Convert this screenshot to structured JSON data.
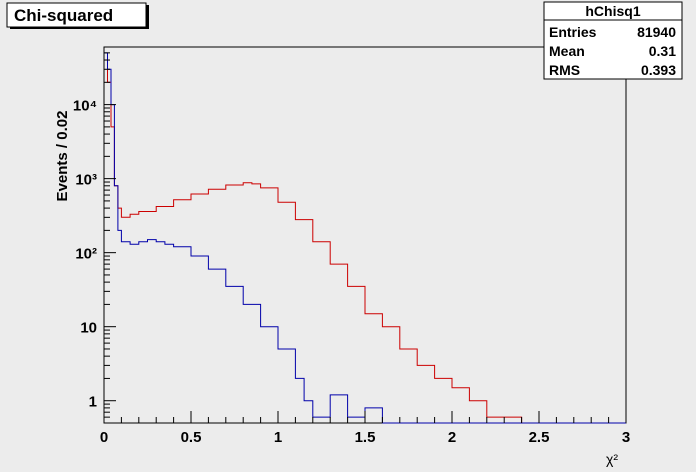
{
  "title": "Chi-squared",
  "stats": {
    "name": "hChisq1",
    "rows": [
      {
        "label": "Entries",
        "value": "81940"
      },
      {
        "label": "Mean",
        "value": "0.31"
      },
      {
        "label": "RMS",
        "value": "0.393"
      }
    ]
  },
  "colors": {
    "background": "#ececec",
    "frame": "#000000",
    "red_series": "#cc0000",
    "blue_series": "#0000aa"
  },
  "chart_data": {
    "type": "line",
    "title": "Chi-squared",
    "xlabel": "χ²",
    "ylabel": "Events / 0.02",
    "xlim": [
      0,
      3
    ],
    "ylim": [
      0.5,
      60000
    ],
    "yscale": "log",
    "grid": false,
    "legend": "none",
    "xticks": [
      0,
      0.5,
      1,
      1.5,
      2,
      2.5,
      3
    ],
    "xtick_labels": [
      "0",
      "0.5",
      "1",
      "1.5",
      "2",
      "2.5",
      "3"
    ],
    "yticks": [
      1,
      10,
      100,
      1000,
      10000
    ],
    "ytick_labels": [
      "1",
      "10",
      "10²",
      "10³",
      "10⁴"
    ],
    "step_histogram": true,
    "bin_width": 0.01,
    "series": [
      {
        "color": "#cc0000",
        "x": [
          0.0,
          0.02,
          0.04,
          0.06,
          0.08,
          0.1,
          0.15,
          0.2,
          0.3,
          0.4,
          0.5,
          0.6,
          0.7,
          0.8,
          0.85,
          0.9,
          1.0,
          1.1,
          1.2,
          1.3,
          1.4,
          1.5,
          1.6,
          1.7,
          1.8,
          1.9,
          2.0,
          2.1,
          2.2,
          2.3,
          2.4,
          2.5,
          3.0
        ],
        "y": [
          40000,
          20000,
          5000,
          800,
          400,
          300,
          330,
          360,
          420,
          520,
          620,
          720,
          820,
          880,
          850,
          750,
          480,
          280,
          140,
          70,
          35,
          15,
          10,
          5,
          3,
          2,
          1.5,
          1,
          0.6,
          0.6,
          0.3,
          0.3,
          0.3
        ]
      },
      {
        "color": "#0000aa",
        "x": [
          0.0,
          0.02,
          0.04,
          0.06,
          0.08,
          0.1,
          0.15,
          0.2,
          0.25,
          0.3,
          0.35,
          0.4,
          0.5,
          0.6,
          0.7,
          0.8,
          0.9,
          1.0,
          1.1,
          1.15,
          1.2,
          1.3,
          1.4,
          1.5,
          1.6,
          2.0,
          3.0
        ],
        "y": [
          50000,
          30000,
          10000,
          800,
          200,
          140,
          130,
          140,
          150,
          140,
          130,
          120,
          90,
          60,
          35,
          20,
          10,
          5,
          2,
          1,
          0.6,
          1.2,
          0.6,
          0.8,
          0.3,
          0.3,
          0.3
        ]
      }
    ]
  }
}
